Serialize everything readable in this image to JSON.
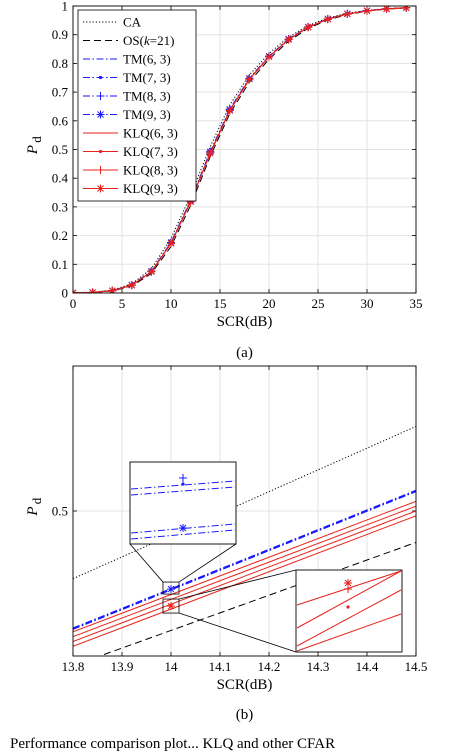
{
  "chart_data": [
    {
      "type": "line",
      "panel_label": "(a)",
      "xlabel": "SCR(dB)",
      "ylabel": "P",
      "ylabel_sub": "d",
      "xlim": [
        0,
        35
      ],
      "ylim": [
        0,
        1
      ],
      "xticks": [
        "0",
        "5",
        "10",
        "15",
        "20",
        "25",
        "30",
        "35"
      ],
      "yticks": [
        "0",
        "0.1",
        "0.2",
        "0.3",
        "0.4",
        "0.5",
        "0.6",
        "0.7",
        "0.8",
        "0.9",
        "1"
      ],
      "grid": true,
      "legend_position": "top-left",
      "x": [
        0,
        2,
        4,
        6,
        8,
        10,
        12,
        14,
        16,
        18,
        20,
        22,
        24,
        26,
        28,
        30,
        32,
        34
      ],
      "series": [
        {
          "name": "CA",
          "color": "#000000",
          "style": "dotted",
          "marker": "none",
          "values": [
            0.001,
            0.003,
            0.01,
            0.032,
            0.085,
            0.19,
            0.34,
            0.51,
            0.655,
            0.76,
            0.835,
            0.892,
            0.932,
            0.958,
            0.975,
            0.985,
            0.991,
            0.995
          ]
        },
        {
          "name": "OS(k=21)",
          "color": "#000000",
          "style": "dashed",
          "marker": "none",
          "values": [
            0.001,
            0.002,
            0.007,
            0.024,
            0.068,
            0.162,
            0.305,
            0.475,
            0.625,
            0.735,
            0.815,
            0.877,
            0.922,
            0.951,
            0.97,
            0.982,
            0.989,
            0.993
          ]
        },
        {
          "name": "TM(6, 3)",
          "color": "#1a1aff",
          "style": "dashdot",
          "marker": "none",
          "values": [
            0.001,
            0.002,
            0.008,
            0.028,
            0.076,
            0.176,
            0.322,
            0.492,
            0.64,
            0.748,
            0.825,
            0.885,
            0.927,
            0.955,
            0.973,
            0.984,
            0.99,
            0.994
          ]
        },
        {
          "name": "TM(7, 3)",
          "color": "#1a1aff",
          "style": "dashdot",
          "marker": "point",
          "values": [
            0.001,
            0.002,
            0.008,
            0.028,
            0.076,
            0.176,
            0.322,
            0.492,
            0.64,
            0.748,
            0.825,
            0.885,
            0.927,
            0.955,
            0.973,
            0.984,
            0.99,
            0.994
          ]
        },
        {
          "name": "TM(8, 3)",
          "color": "#1a1aff",
          "style": "dashdot",
          "marker": "plus",
          "values": [
            0.001,
            0.002,
            0.008,
            0.028,
            0.076,
            0.176,
            0.322,
            0.492,
            0.64,
            0.748,
            0.825,
            0.885,
            0.927,
            0.955,
            0.973,
            0.984,
            0.99,
            0.994
          ]
        },
        {
          "name": "TM(9, 3)",
          "color": "#1a1aff",
          "style": "dashdot",
          "marker": "star",
          "values": [
            0.001,
            0.002,
            0.008,
            0.028,
            0.076,
            0.176,
            0.322,
            0.492,
            0.64,
            0.748,
            0.825,
            0.885,
            0.927,
            0.955,
            0.973,
            0.984,
            0.99,
            0.994
          ]
        },
        {
          "name": "KLQ(6, 3)",
          "color": "#e8221b",
          "style": "solid",
          "marker": "none",
          "values": [
            0.001,
            0.002,
            0.008,
            0.027,
            0.074,
            0.173,
            0.318,
            0.487,
            0.636,
            0.745,
            0.823,
            0.883,
            0.926,
            0.954,
            0.972,
            0.983,
            0.99,
            0.994
          ]
        },
        {
          "name": "KLQ(7, 3)",
          "color": "#e8221b",
          "style": "solid",
          "marker": "point",
          "values": [
            0.001,
            0.002,
            0.008,
            0.027,
            0.074,
            0.173,
            0.318,
            0.487,
            0.636,
            0.745,
            0.823,
            0.883,
            0.926,
            0.954,
            0.972,
            0.983,
            0.99,
            0.994
          ]
        },
        {
          "name": "KLQ(8, 3)",
          "color": "#e8221b",
          "style": "solid",
          "marker": "plus",
          "values": [
            0.001,
            0.002,
            0.008,
            0.027,
            0.074,
            0.173,
            0.318,
            0.487,
            0.636,
            0.745,
            0.823,
            0.883,
            0.926,
            0.954,
            0.972,
            0.983,
            0.99,
            0.994
          ]
        },
        {
          "name": "KLQ(9, 3)",
          "color": "#e8221b",
          "style": "solid",
          "marker": "star",
          "values": [
            0.001,
            0.002,
            0.008,
            0.027,
            0.074,
            0.173,
            0.318,
            0.487,
            0.636,
            0.745,
            0.823,
            0.883,
            0.926,
            0.954,
            0.972,
            0.983,
            0.99,
            0.994
          ]
        }
      ]
    },
    {
      "type": "line",
      "panel_label": "(b)",
      "xlabel": "SCR(dB)",
      "ylabel": "P",
      "ylabel_sub": "d",
      "xlim": [
        13.8,
        14.5
      ],
      "ylim": [
        0.44,
        0.56
      ],
      "xticks": [
        "13.8",
        "13.9",
        "14",
        "14.1",
        "14.2",
        "14.3",
        "14.4",
        "14.5"
      ],
      "yticks": [
        "0.5"
      ],
      "grid": true,
      "legend_position": "none",
      "x": [
        13.8,
        14.5
      ],
      "series": [
        {
          "name": "CA",
          "color": "#000000",
          "style": "dotted",
          "values": [
            0.472,
            0.535
          ]
        },
        {
          "name": "OS(k=21)",
          "color": "#000000",
          "style": "dashed",
          "values": [
            0.436,
            0.487
          ]
        },
        {
          "name": "TM(6, 3)",
          "color": "#1a1aff",
          "style": "dashdot",
          "values": [
            0.451,
            0.508
          ]
        },
        {
          "name": "TM(7, 3)",
          "color": "#1a1aff",
          "style": "dashdot",
          "values": [
            0.4512,
            0.5082
          ]
        },
        {
          "name": "TM(8, 3)",
          "color": "#1a1aff",
          "style": "dashdot",
          "values": [
            0.4514,
            0.5084
          ]
        },
        {
          "name": "TM(9, 3)",
          "color": "#1a1aff",
          "style": "dashdot",
          "values": [
            0.4516,
            0.5086
          ]
        },
        {
          "name": "KLQ(6, 3)",
          "color": "#e8221b",
          "style": "solid",
          "values": [
            0.444,
            0.498
          ]
        },
        {
          "name": "KLQ(7, 3)",
          "color": "#e8221b",
          "style": "solid",
          "values": [
            0.446,
            0.5
          ]
        },
        {
          "name": "KLQ(8, 3)",
          "color": "#e8221b",
          "style": "solid",
          "values": [
            0.448,
            0.502
          ]
        },
        {
          "name": "KLQ(9, 3)",
          "color": "#e8221b",
          "style": "solid",
          "values": [
            0.45,
            0.504
          ]
        }
      ],
      "zoom_marker_x": 14.0
    }
  ],
  "caption_fragment": "Performance comparison plot... KLQ and other CFAR"
}
